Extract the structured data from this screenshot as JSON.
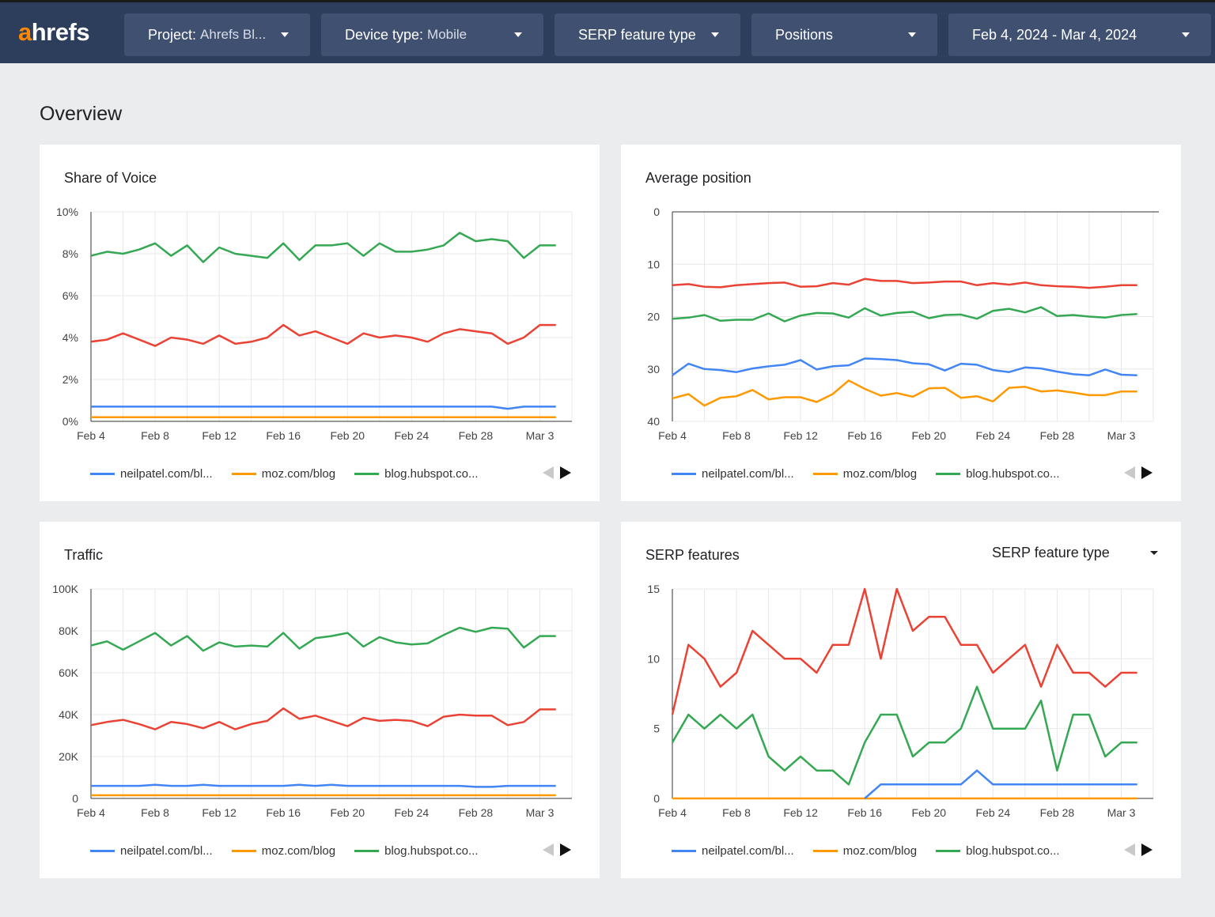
{
  "header": {
    "logo_accent": "a",
    "logo_rest": "hrefs",
    "filters": [
      {
        "label": "Project:",
        "value": "Ahrefs Bl..."
      },
      {
        "label": "Device type:",
        "value": "Mobile"
      },
      {
        "label": "SERP feature type",
        "value": ""
      },
      {
        "label": "Positions",
        "value": ""
      },
      {
        "label": "Feb 4, 2024 - Mar 4, 2024",
        "value": ""
      }
    ]
  },
  "page_title": "Overview",
  "colors": {
    "neilpatel": "#4285f4",
    "moz": "#ff9900",
    "hubspot": "#34a853",
    "red": "#ea4335",
    "header_bg": "#2c3e5c",
    "logo_accent": "#ff8800"
  },
  "legend": [
    {
      "label": "neilpatel.com/bl...",
      "color": "#4285f4"
    },
    {
      "label": "moz.com/blog",
      "color": "#ff9900"
    },
    {
      "label": "blog.hubspot.co...",
      "color": "#34a853"
    }
  ],
  "serp_dropdown": {
    "label": "SERP feature type"
  },
  "chart_data": [
    {
      "type": "line",
      "title": "Share of Voice",
      "x_ticks": [
        "Feb 4",
        "Feb 8",
        "Feb 12",
        "Feb 16",
        "Feb 20",
        "Feb 24",
        "Feb 28",
        "Mar 3"
      ],
      "y_ticks": [
        "0%",
        "2%",
        "4%",
        "6%",
        "8%",
        "10%"
      ],
      "ylim": [
        0,
        10
      ],
      "y_unit": "%",
      "grid": true,
      "series": [
        {
          "color": "#34a853",
          "values": [
            7.9,
            8.1,
            8.0,
            8.2,
            8.5,
            7.9,
            8.4,
            7.6,
            8.3,
            8.0,
            7.9,
            7.8,
            8.5,
            7.7,
            8.4,
            8.4,
            8.5,
            7.9,
            8.5,
            8.1,
            8.1,
            8.2,
            8.4,
            9.0,
            8.6,
            8.7,
            8.6,
            7.8,
            8.4,
            8.4
          ]
        },
        {
          "color": "#ea4335",
          "values": [
            3.8,
            3.9,
            4.2,
            3.9,
            3.6,
            4.0,
            3.9,
            3.7,
            4.1,
            3.7,
            3.8,
            4.0,
            4.6,
            4.1,
            4.3,
            4.0,
            3.7,
            4.2,
            4.0,
            4.1,
            4.0,
            3.8,
            4.2,
            4.4,
            4.3,
            4.2,
            3.7,
            4.0,
            4.6,
            4.6
          ]
        },
        {
          "color": "#4285f4",
          "values": [
            0.7,
            0.7,
            0.7,
            0.7,
            0.7,
            0.7,
            0.7,
            0.7,
            0.7,
            0.7,
            0.7,
            0.7,
            0.7,
            0.7,
            0.7,
            0.7,
            0.7,
            0.7,
            0.7,
            0.7,
            0.7,
            0.7,
            0.7,
            0.7,
            0.7,
            0.7,
            0.6,
            0.7,
            0.7,
            0.7
          ]
        },
        {
          "color": "#ff9900",
          "values": [
            0.2,
            0.2,
            0.2,
            0.2,
            0.2,
            0.2,
            0.2,
            0.2,
            0.2,
            0.2,
            0.2,
            0.2,
            0.2,
            0.2,
            0.2,
            0.2,
            0.2,
            0.2,
            0.2,
            0.2,
            0.2,
            0.2,
            0.2,
            0.2,
            0.2,
            0.2,
            0.2,
            0.2,
            0.2,
            0.2
          ]
        }
      ]
    },
    {
      "type": "line",
      "title": "Average position",
      "x_ticks": [
        "Feb 4",
        "Feb 8",
        "Feb 12",
        "Feb 16",
        "Feb 20",
        "Feb 24",
        "Feb 28",
        "Mar 3"
      ],
      "y_ticks": [
        "0",
        "10",
        "20",
        "30",
        "40"
      ],
      "ylim": [
        0,
        40
      ],
      "reversed": true,
      "grid": true,
      "series": [
        {
          "color": "#ea4335",
          "values": [
            14,
            13.8,
            14.3,
            14.4,
            14,
            13.8,
            13.6,
            13.5,
            14.3,
            14.2,
            13.6,
            13.9,
            12.8,
            13.2,
            13.2,
            13.6,
            13.5,
            13.3,
            13.3,
            14,
            13.6,
            13.9,
            13.5,
            14,
            14.2,
            14.3,
            14.5,
            14.3,
            14,
            14
          ]
        },
        {
          "color": "#34a853",
          "values": [
            20.4,
            20.2,
            19.7,
            20.8,
            20.6,
            20.6,
            19.4,
            20.9,
            19.8,
            19.3,
            19.4,
            20.2,
            18.4,
            19.8,
            19.3,
            19.1,
            20.3,
            19.7,
            19.6,
            20.4,
            18.9,
            18.5,
            19.2,
            18.2,
            19.9,
            19.7,
            20.0,
            20.2,
            19.7,
            19.5
          ]
        },
        {
          "color": "#4285f4",
          "values": [
            31.2,
            29,
            30,
            30.2,
            30.6,
            29.9,
            29.5,
            29.2,
            28.3,
            30.1,
            29.5,
            29.3,
            28,
            28.1,
            28.3,
            28.9,
            29.1,
            30.3,
            29,
            29.2,
            30.2,
            30.6,
            29.7,
            29.9,
            30.5,
            31,
            31.2,
            30.1,
            31.1,
            31.2
          ]
        },
        {
          "color": "#ff9900",
          "values": [
            35.6,
            34.8,
            37,
            35.5,
            35.2,
            34,
            35.8,
            35.4,
            35.4,
            36.3,
            34.8,
            32.2,
            33.8,
            35.1,
            34.6,
            35.3,
            33.7,
            33.6,
            35.5,
            35.2,
            36.2,
            33.6,
            33.4,
            34.3,
            34.1,
            34.5,
            35,
            35,
            34.3,
            34.3
          ]
        }
      ]
    },
    {
      "type": "line",
      "title": "Traffic",
      "x_ticks": [
        "Feb 4",
        "Feb 8",
        "Feb 12",
        "Feb 16",
        "Feb 20",
        "Feb 24",
        "Feb 28",
        "Mar 3"
      ],
      "y_ticks": [
        "0",
        "20K",
        "40K",
        "60K",
        "80K",
        "100K"
      ],
      "ylim": [
        0,
        100000
      ],
      "grid": true,
      "series": [
        {
          "color": "#34a853",
          "values": [
            73000,
            75000,
            71000,
            75000,
            79000,
            73000,
            77500,
            70500,
            74500,
            72500,
            73000,
            72500,
            79000,
            71500,
            76500,
            77500,
            79000,
            72500,
            77000,
            74500,
            73500,
            74000,
            78000,
            81500,
            79500,
            81500,
            81000,
            72000,
            77500,
            77500
          ]
        },
        {
          "color": "#ea4335",
          "values": [
            35000,
            36500,
            37500,
            35500,
            33000,
            36500,
            35500,
            33500,
            36500,
            33000,
            35500,
            37000,
            43000,
            38000,
            39500,
            37000,
            34500,
            38500,
            37000,
            37500,
            37000,
            34500,
            39000,
            40000,
            39500,
            39500,
            35000,
            36500,
            42500,
            42500
          ]
        },
        {
          "color": "#4285f4",
          "values": [
            6000,
            6000,
            6000,
            6000,
            6500,
            6000,
            6000,
            6500,
            6000,
            6000,
            6000,
            6000,
            6000,
            6500,
            6000,
            6500,
            6000,
            6000,
            6000,
            6000,
            6000,
            6000,
            6000,
            6000,
            5500,
            5500,
            6000,
            6000,
            6000,
            6000
          ]
        },
        {
          "color": "#ff9900",
          "values": [
            1500,
            1500,
            1500,
            1500,
            1500,
            1500,
            1500,
            1500,
            1500,
            1500,
            1500,
            1500,
            1500,
            1500,
            1500,
            1500,
            1500,
            1500,
            1500,
            1500,
            1500,
            1500,
            1500,
            1500,
            1500,
            1500,
            1500,
            1500,
            1500,
            1500
          ]
        }
      ]
    },
    {
      "type": "line",
      "title": "SERP features",
      "x_ticks": [
        "Feb 4",
        "Feb 8",
        "Feb 12",
        "Feb 16",
        "Feb 20",
        "Feb 24",
        "Feb 28",
        "Mar 3"
      ],
      "y_ticks": [
        "0",
        "5",
        "10",
        "15"
      ],
      "ylim": [
        0,
        15
      ],
      "grid": true,
      "series": [
        {
          "color": "#ea4335",
          "values": [
            6,
            11,
            10,
            8,
            9,
            12,
            11,
            10,
            10,
            9,
            11,
            11,
            15,
            10,
            15,
            12,
            13,
            13,
            11,
            11,
            9,
            10,
            11,
            8,
            11,
            9,
            9,
            8,
            9,
            9
          ]
        },
        {
          "color": "#34a853",
          "values": [
            4,
            6,
            5,
            6,
            5,
            6,
            3,
            2,
            3,
            2,
            2,
            1,
            4,
            6,
            6,
            3,
            4,
            4,
            5,
            8,
            5,
            5,
            5,
            7,
            2,
            6,
            6,
            3,
            4,
            4
          ]
        },
        {
          "color": "#4285f4",
          "values": [
            null,
            null,
            null,
            null,
            null,
            null,
            null,
            null,
            null,
            null,
            null,
            null,
            0,
            1,
            1,
            1,
            1,
            1,
            1,
            2,
            1,
            1,
            1,
            1,
            1,
            1,
            1,
            1,
            1,
            1
          ]
        },
        {
          "color": "#ff9900",
          "values": [
            0,
            0,
            0,
            0,
            0,
            0,
            0,
            0,
            0,
            0,
            0,
            0,
            0,
            0,
            0,
            0,
            0,
            0,
            0,
            0,
            0,
            0,
            0,
            0,
            0,
            0,
            0,
            0,
            0,
            0
          ]
        }
      ]
    }
  ]
}
